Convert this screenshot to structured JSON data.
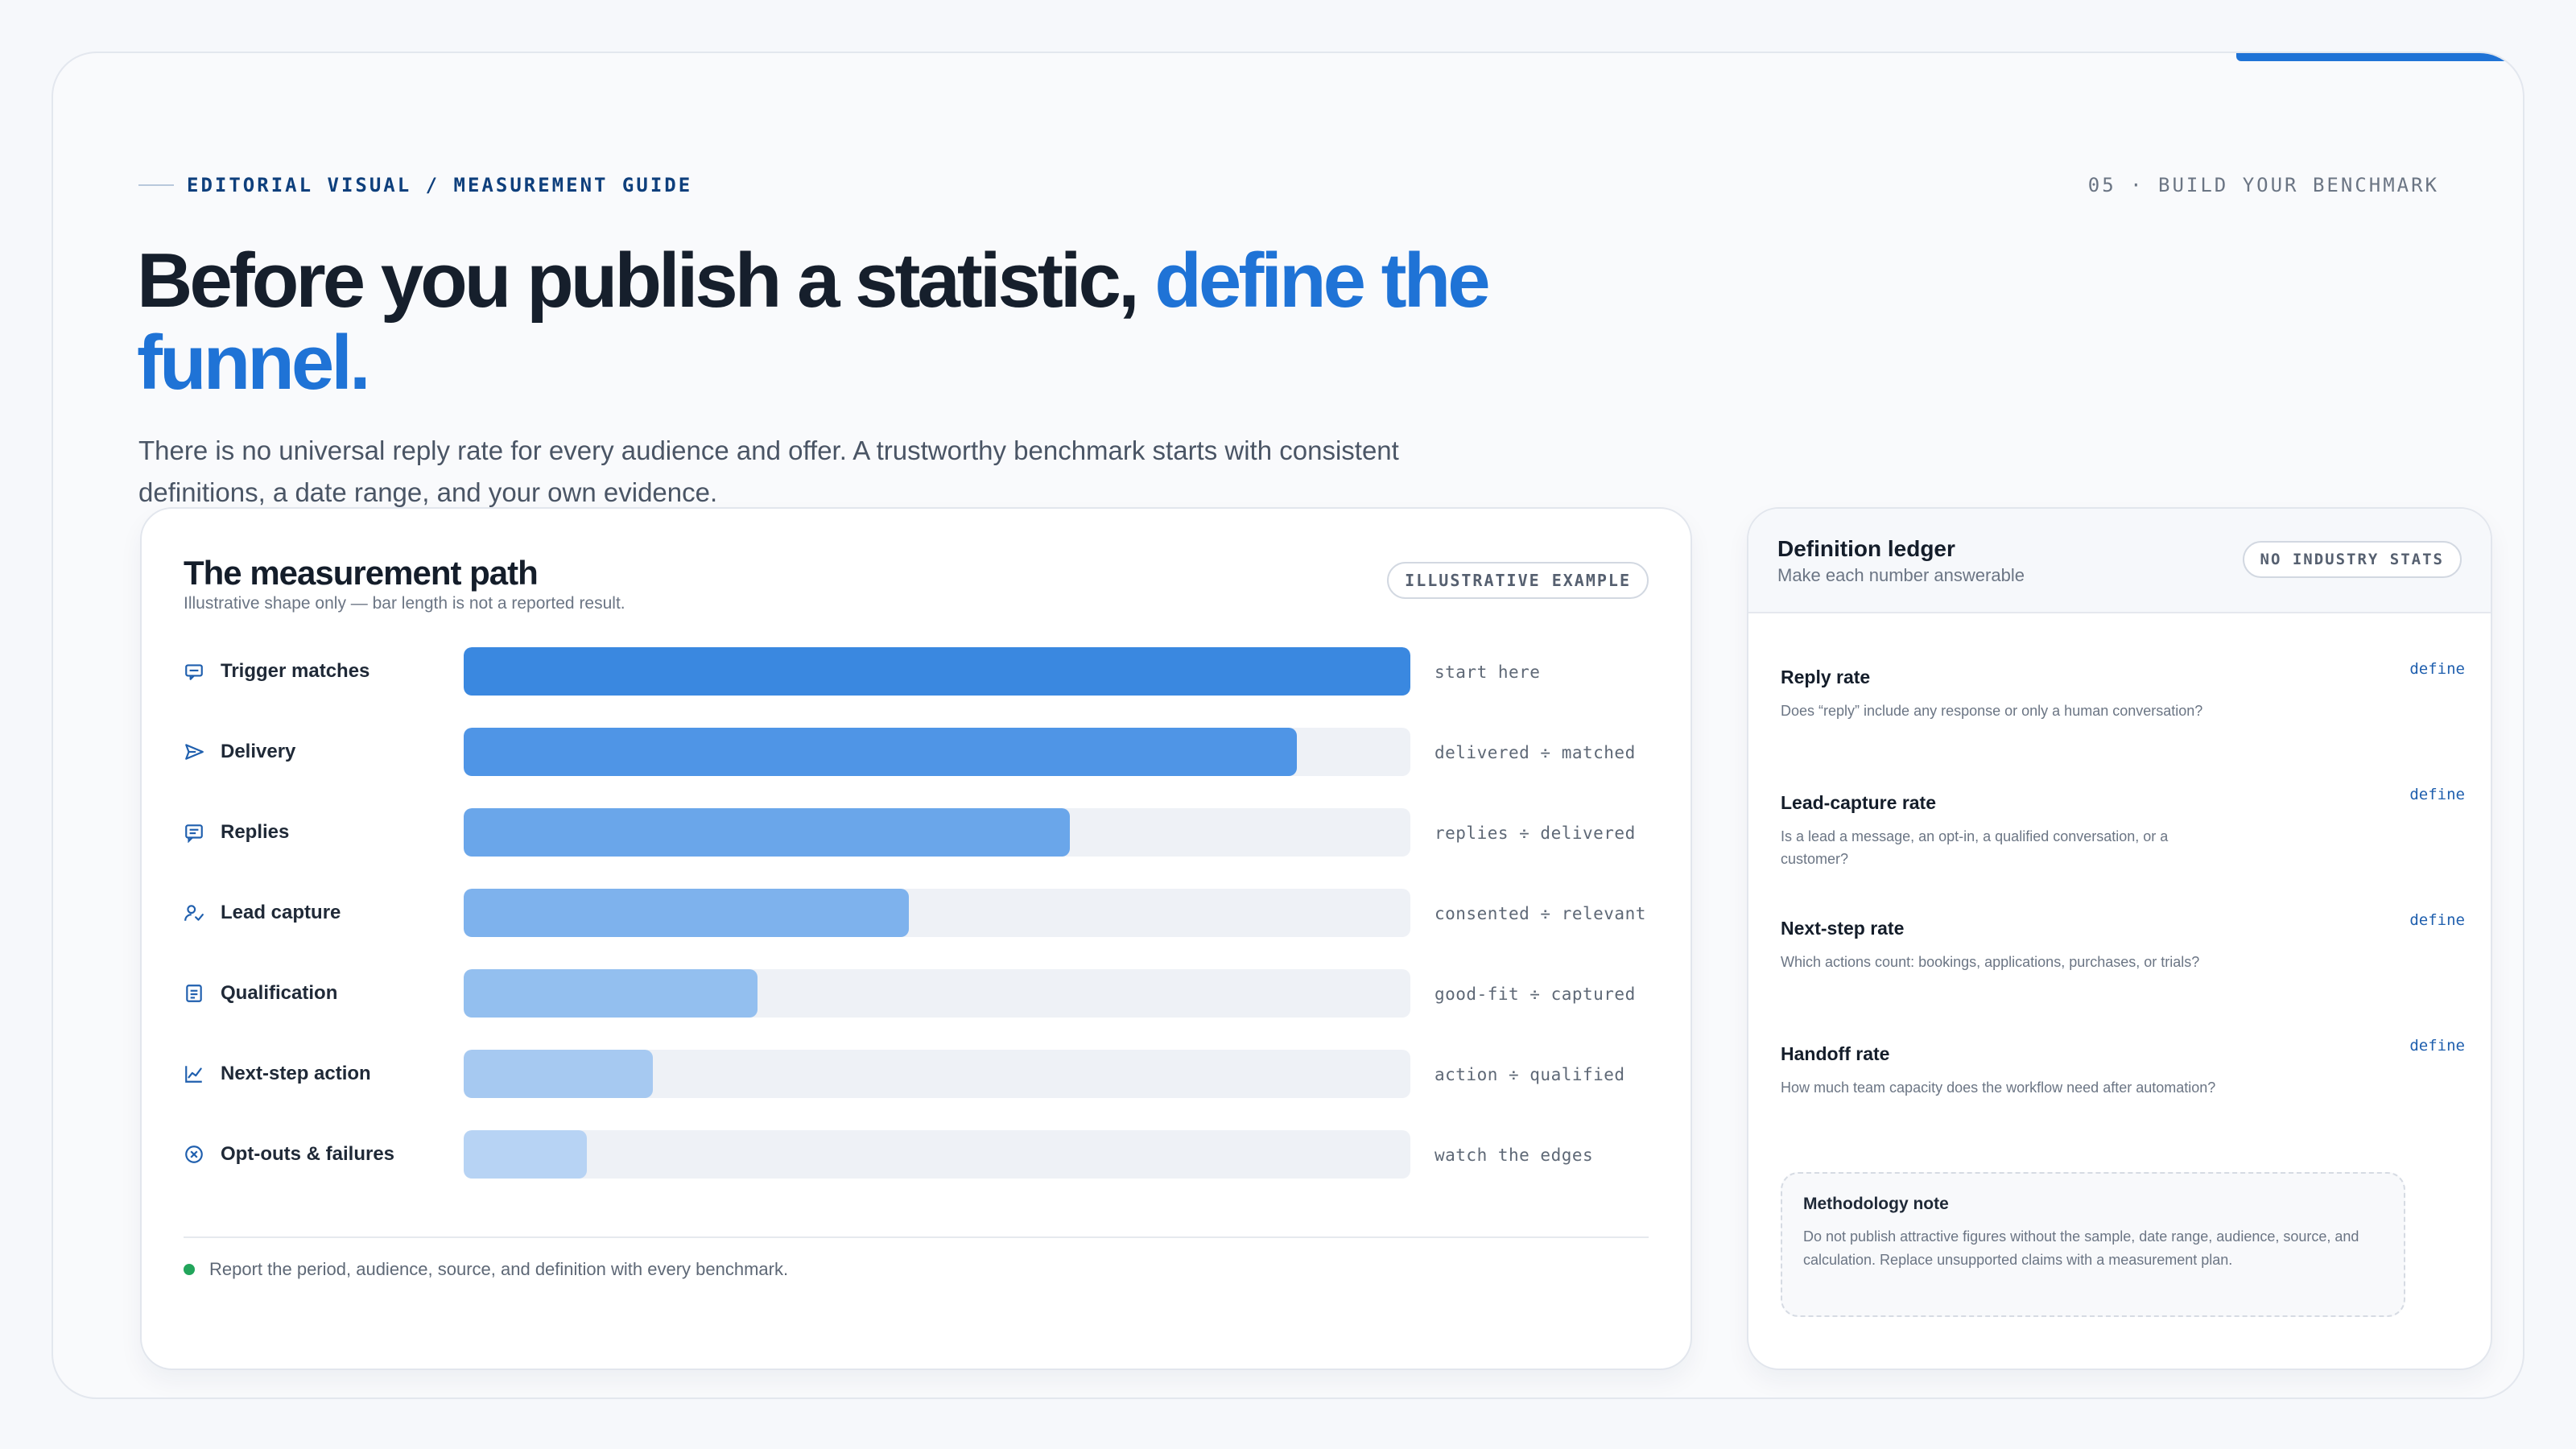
{
  "header": {
    "eyebrow": "EDITORIAL VISUAL / MEASUREMENT GUIDE",
    "section": "05 · BUILD YOUR BENCHMARK",
    "headline_dark": "Before you publish a statistic, ",
    "headline_accent": "define the funnel.",
    "lede": "There is no universal reply rate for every audience and offer. A trustworthy benchmark starts with consistent definitions, a date range, and your own evidence."
  },
  "path": {
    "title": "The measurement path",
    "subtitle": "Illustrative shape only — bar length is not a reported result.",
    "badge": "ILLUSTRATIVE EXAMPLE",
    "footer": "Report the period, audience, source, and definition with every benchmark.",
    "stages": [
      {
        "label": "Trigger matches",
        "note": "start here",
        "level": 1.0,
        "icon": "chat-bubble-icon",
        "color": "#3a88e0"
      },
      {
        "label": "Delivery",
        "note": "delivered ÷ matched",
        "level": 0.88,
        "icon": "send-icon",
        "color": "#4f95e6"
      },
      {
        "label": "Replies",
        "note": "replies ÷ delivered",
        "level": 0.64,
        "icon": "message-lines-icon",
        "color": "#6aa6ea"
      },
      {
        "label": "Lead capture",
        "note": "consented ÷ relevant",
        "level": 0.47,
        "icon": "user-check-icon",
        "color": "#7eb2ed"
      },
      {
        "label": "Qualification",
        "note": "good-fit ÷ captured",
        "level": 0.31,
        "icon": "document-lines-icon",
        "color": "#93bfef"
      },
      {
        "label": "Next-step action",
        "note": "action ÷ qualified",
        "level": 0.2,
        "icon": "trend-chart-icon",
        "color": "#a6c9f1"
      },
      {
        "label": "Opt-outs & failures",
        "note": "watch the edges",
        "level": 0.13,
        "icon": "x-circle-icon",
        "color": "#b7d3f4"
      }
    ]
  },
  "ledger": {
    "title": "Definition ledger",
    "subtitle": "Make each number answerable",
    "badge": "NO INDUSTRY STATS",
    "entries": [
      {
        "term": "Reply rate",
        "question": "Does “reply” include any response or only a human conversation?",
        "link": "define"
      },
      {
        "term": "Lead-capture rate",
        "question": "Is a lead a message, an opt-in, a qualified conversation, or a customer?",
        "link": "define"
      },
      {
        "term": "Next-step rate",
        "question": "Which actions count: bookings, applications, purchases, or trials?",
        "link": "define"
      },
      {
        "term": "Handoff rate",
        "question": "How much team capacity does the workflow need after automation?",
        "link": "define"
      }
    ],
    "note_title": "Methodology note",
    "note_body": "Do not publish attractive figures without the sample, date range, audience, source, and calculation. Replace unsupported claims with a measurement plan."
  }
}
